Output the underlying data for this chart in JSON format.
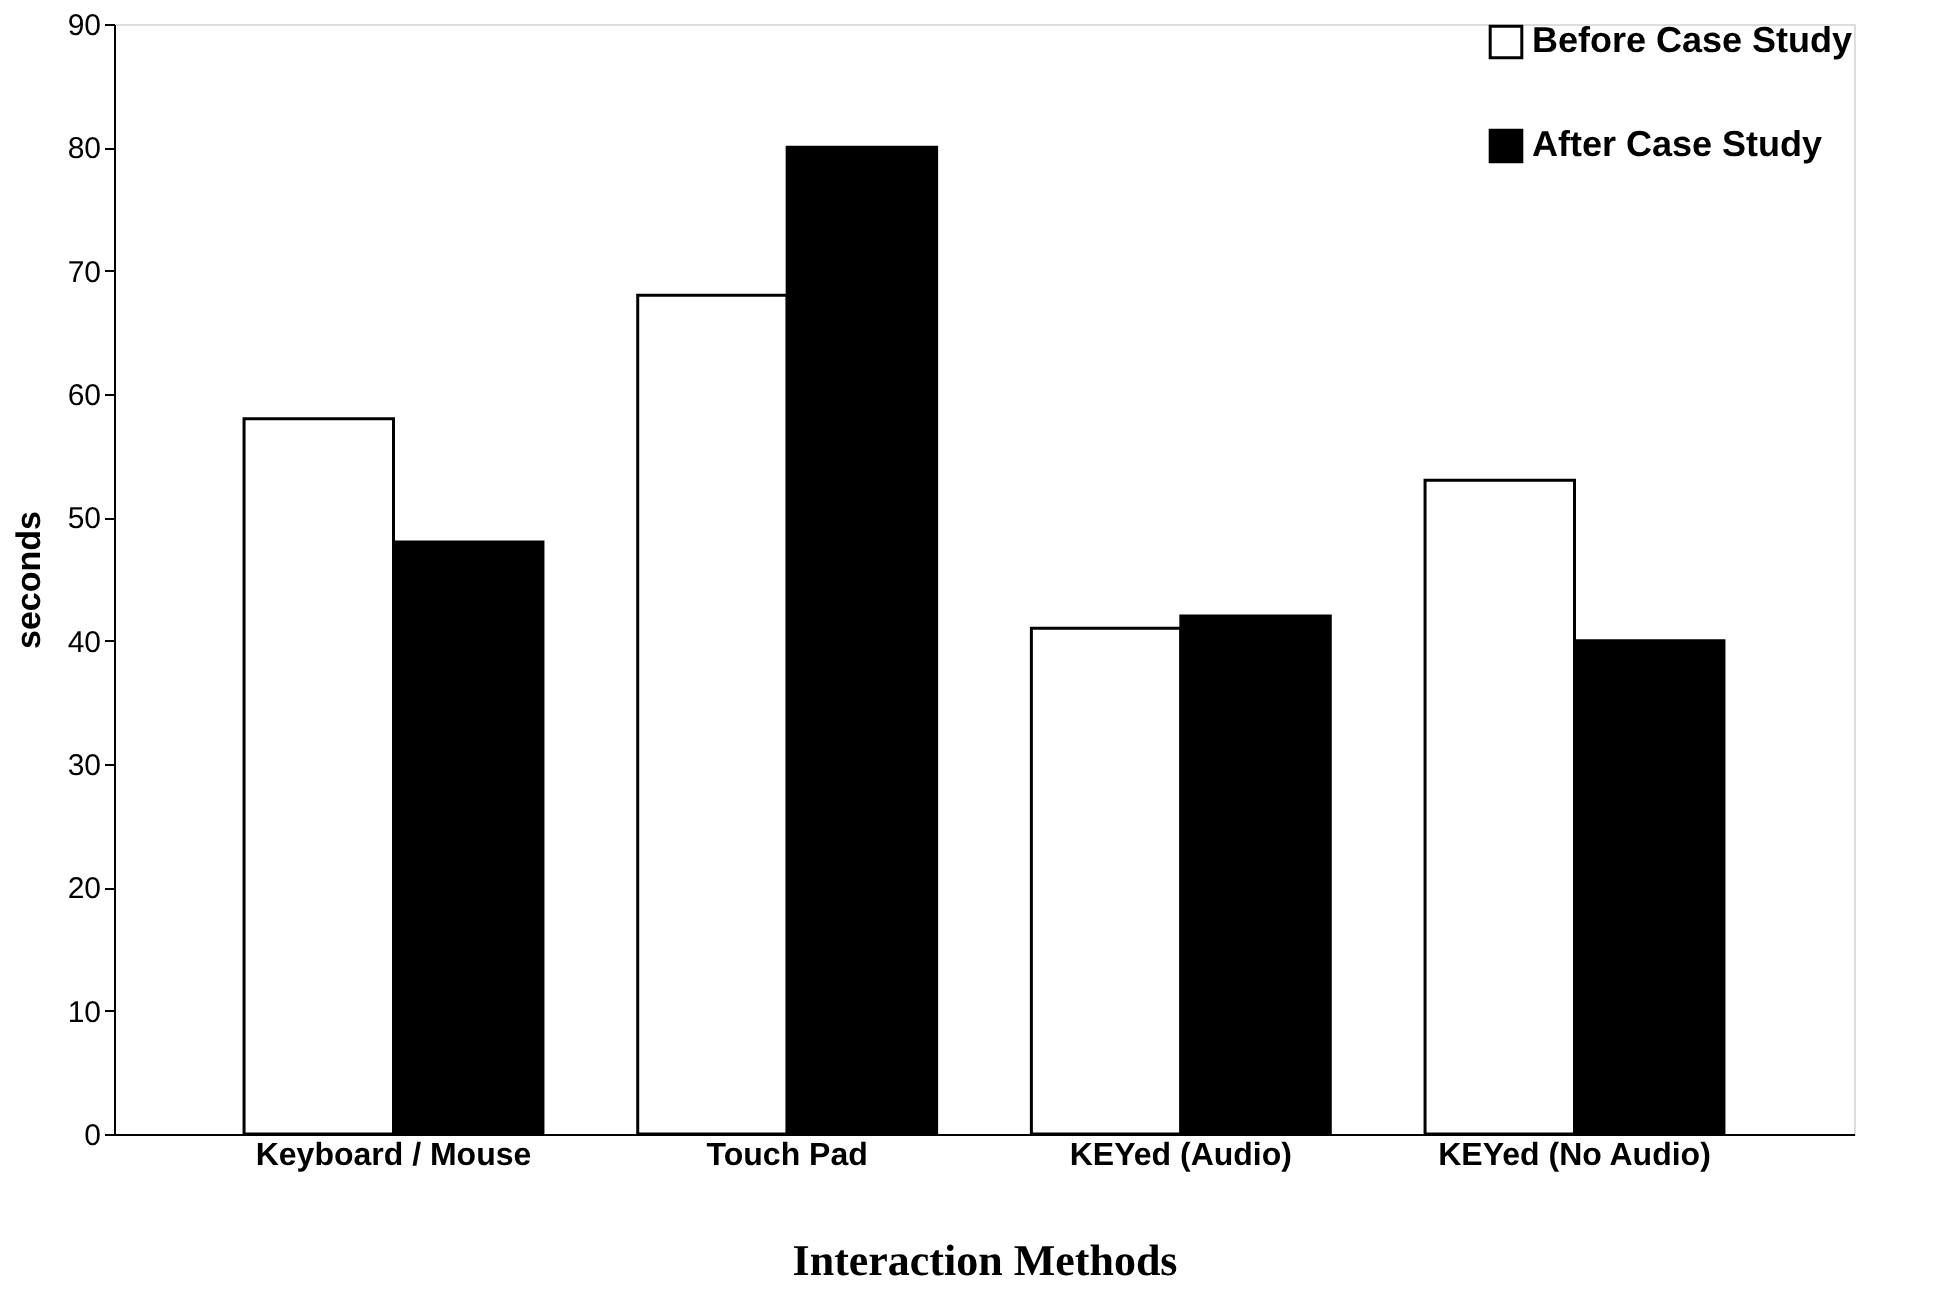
{
  "chart_data": {
    "type": "bar",
    "xlabel": "Interaction Methods",
    "ylabel": "seconds",
    "categories": [
      "Keyboard / Mouse",
      "Touch Pad",
      "KEYed (Audio)",
      "KEYed (No Audio)"
    ],
    "series": [
      {
        "name": "Before Case Study",
        "color": "#ffffff",
        "values": [
          58,
          68,
          41,
          53
        ]
      },
      {
        "name": "After Case Study",
        "color": "#000000",
        "values": [
          48,
          80,
          42,
          40
        ]
      }
    ],
    "ylim": [
      0,
      90
    ],
    "yticks": [
      0,
      10,
      20,
      30,
      40,
      50,
      60,
      70,
      80,
      90
    ],
    "grid": false,
    "legend": "top right"
  }
}
